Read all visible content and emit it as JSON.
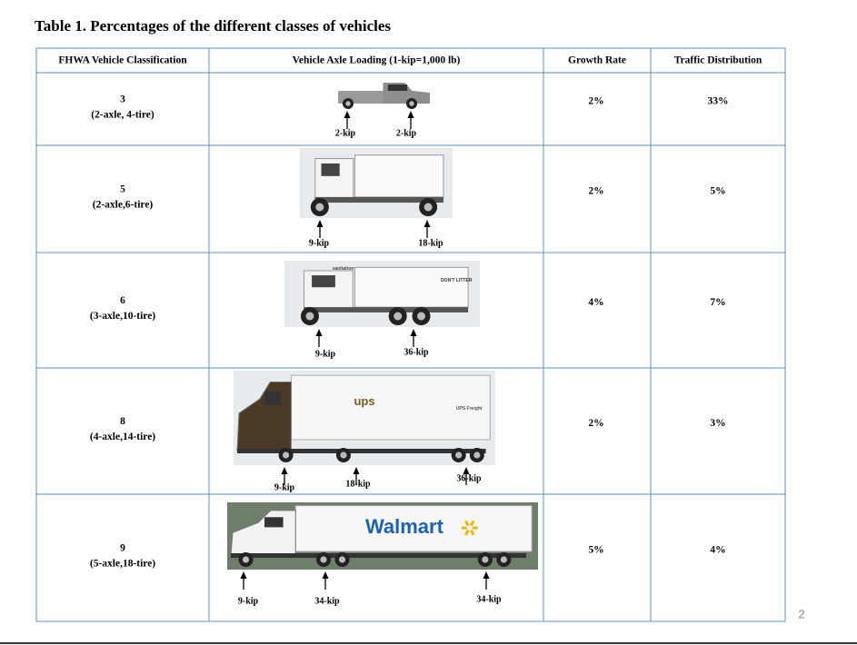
{
  "title": "Table 1. Percentages of the different classes of vehicles",
  "table": {
    "headers": [
      "FHWA Vehicle Classification",
      "Vehicle Axle Loading (1-kip=1,000 lb)",
      "Growth Rate",
      "Traffic Distribution"
    ],
    "rows": [
      {
        "class": "3",
        "axles": "(2-axle, 4-tire)",
        "loads": [
          "2-kip",
          "2-kip"
        ],
        "labels": [],
        "growth": "2%",
        "distribution": "33%"
      },
      {
        "class": "5",
        "axles": "(2-axle,6-tire)",
        "loads": [
          "9-kip",
          "18-kip"
        ],
        "labels": [],
        "growth": "2%",
        "distribution": "5%"
      },
      {
        "class": "6",
        "axles": "(3-axle,10-tire)",
        "loads": [
          "9-kip",
          "36-kip"
        ],
        "labels": [
          "sanitation",
          "DON'T LITTER"
        ],
        "growth": "4%",
        "distribution": "7%"
      },
      {
        "class": "8",
        "axles": "(4-axle,14-tire)",
        "loads": [
          "9-kip",
          "18-kip",
          "36-kip"
        ],
        "labels": [
          "ups",
          "UPS Freight"
        ],
        "growth": "2%",
        "distribution": "3%"
      },
      {
        "class": "9",
        "axles": "(5-axle,18-tire)",
        "loads": [
          "9-kip",
          "34-kip",
          "34-kip"
        ],
        "labels": [
          "Walmart"
        ],
        "growth": "5%",
        "distribution": "4%"
      }
    ]
  },
  "page_number": "2"
}
